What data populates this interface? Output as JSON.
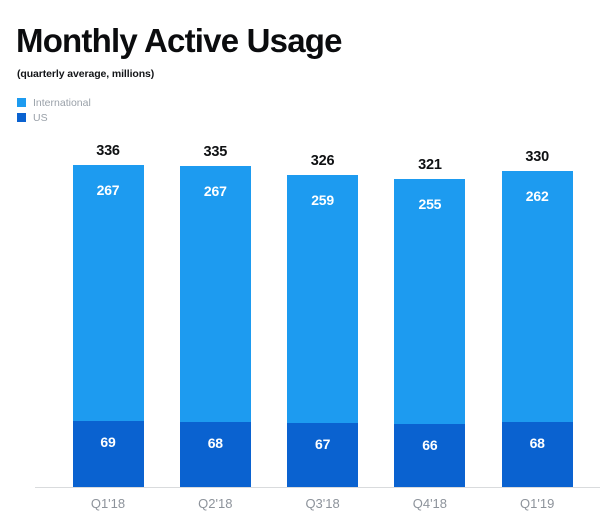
{
  "header": {
    "title": "Monthly Active Usage",
    "subtitle": "(quarterly average, millions)"
  },
  "legend": {
    "items": [
      {
        "label": "International",
        "color": "#1d9bf0"
      },
      {
        "label": "US",
        "color": "#0a62d0"
      }
    ]
  },
  "chart_data": {
    "type": "bar",
    "stacked": true,
    "title": "Monthly Active Usage",
    "subtitle": "(quarterly average, millions)",
    "categories": [
      "Q1'18",
      "Q2'18",
      "Q3'18",
      "Q4'18",
      "Q1'19"
    ],
    "series": [
      {
        "name": "International",
        "color": "#1d9bf0",
        "values": [
          267,
          267,
          259,
          255,
          262
        ]
      },
      {
        "name": "US",
        "color": "#0a62d0",
        "values": [
          69,
          68,
          67,
          66,
          68
        ]
      }
    ],
    "totals": [
      336,
      335,
      326,
      321,
      330
    ],
    "ylim": [
      0,
      336
    ],
    "grid": false,
    "legend_position": "top-left",
    "value_labels": "inside-segments-and-total-above"
  },
  "colors": {
    "background": "#ffffff",
    "international": "#1d9bf0",
    "us": "#0a62d0",
    "axis_line": "#d9dbdd",
    "axis_label": "#8d939b",
    "legend_label": "#9aa1a9",
    "total_label": "#0f1113",
    "segment_label": "#ffffff"
  }
}
